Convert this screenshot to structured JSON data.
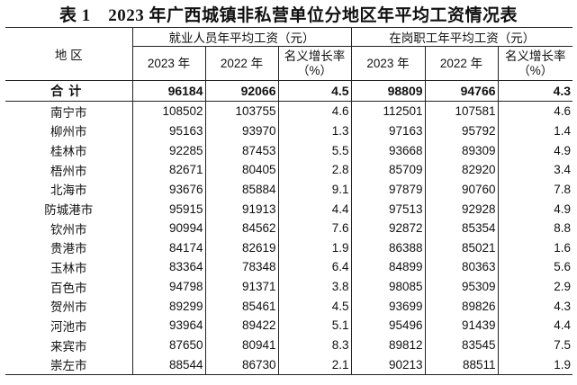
{
  "title": "表 1　2023 年广西城镇非私营单位分地区年平均工资情况表",
  "header": {
    "region": "地 区",
    "group1": "就业人员年平均工资（元）",
    "group2": "在岗职工年平均工资（元）",
    "y2023": "2023 年",
    "y2022": "2022 年",
    "growth": "名义增长率",
    "pct": "（%）"
  },
  "total": {
    "region": "合计",
    "values": [
      "96184",
      "92066",
      "4.5",
      "98809",
      "94766",
      "4.3"
    ]
  },
  "rows": [
    {
      "region": "南宁市",
      "values": [
        "108502",
        "103755",
        "4.6",
        "112501",
        "107581",
        "4.6"
      ]
    },
    {
      "region": "柳州市",
      "values": [
        "95163",
        "93970",
        "1.3",
        "97163",
        "95792",
        "1.4"
      ]
    },
    {
      "region": "桂林市",
      "values": [
        "92285",
        "87453",
        "5.5",
        "93668",
        "89309",
        "4.9"
      ]
    },
    {
      "region": "梧州市",
      "values": [
        "82671",
        "80405",
        "2.8",
        "85709",
        "82920",
        "3.4"
      ]
    },
    {
      "region": "北海市",
      "values": [
        "93676",
        "85884",
        "9.1",
        "97879",
        "90760",
        "7.8"
      ]
    },
    {
      "region": "防城港市",
      "values": [
        "95915",
        "91913",
        "4.4",
        "97513",
        "92928",
        "4.9"
      ]
    },
    {
      "region": "钦州市",
      "values": [
        "90994",
        "84562",
        "7.6",
        "92872",
        "85354",
        "8.8"
      ]
    },
    {
      "region": "贵港市",
      "values": [
        "84174",
        "82619",
        "1.9",
        "86388",
        "85021",
        "1.6"
      ]
    },
    {
      "region": "玉林市",
      "values": [
        "83364",
        "78348",
        "6.4",
        "84899",
        "80363",
        "5.6"
      ]
    },
    {
      "region": "百色市",
      "values": [
        "94798",
        "91371",
        "3.8",
        "98085",
        "95309",
        "2.9"
      ]
    },
    {
      "region": "贺州市",
      "values": [
        "89299",
        "85461",
        "4.5",
        "93699",
        "89826",
        "4.3"
      ]
    },
    {
      "region": "河池市",
      "values": [
        "93964",
        "89422",
        "5.1",
        "95496",
        "91439",
        "4.4"
      ]
    },
    {
      "region": "来宾市",
      "values": [
        "87650",
        "80941",
        "8.3",
        "89812",
        "83545",
        "7.5"
      ]
    },
    {
      "region": "崇左市",
      "values": [
        "88544",
        "86730",
        "2.1",
        "90213",
        "88511",
        "1.9"
      ]
    }
  ]
}
